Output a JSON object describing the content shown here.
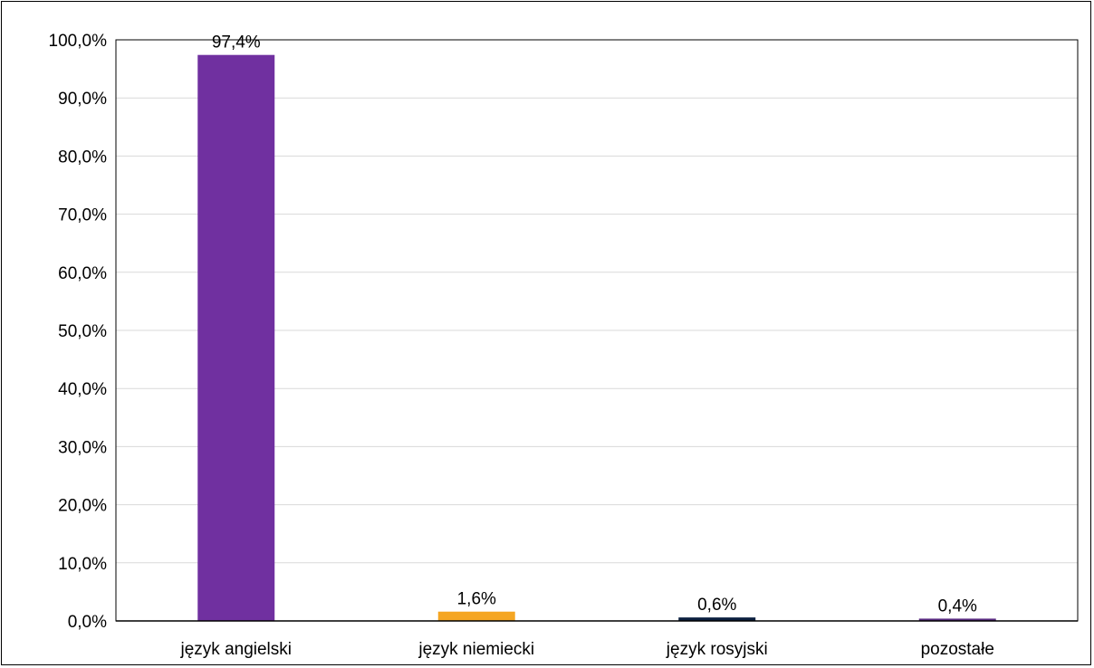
{
  "chart_data": {
    "type": "bar",
    "title": "",
    "xlabel": "",
    "ylabel": "",
    "categories": [
      "język angielski",
      "język niemiecki",
      "język rosyjski",
      "pozostałe"
    ],
    "values": [
      97.4,
      1.6,
      0.6,
      0.4
    ],
    "value_labels": [
      "97,4%",
      "1,6%",
      "0,6%",
      "0,4%"
    ],
    "bar_colors": [
      "#7030A0",
      "#F5A623",
      "#0B1F3F",
      "#5B2C83"
    ],
    "ylim": [
      0,
      100
    ],
    "y_ticks": [
      0,
      10,
      20,
      30,
      40,
      50,
      60,
      70,
      80,
      90,
      100
    ],
    "y_tick_labels": [
      "0,0%",
      "10,0%",
      "20,0%",
      "30,0%",
      "40,0%",
      "50,0%",
      "60,0%",
      "70,0%",
      "80,0%",
      "90,0%",
      "100,0%"
    ],
    "grid": true,
    "legend": "none"
  }
}
